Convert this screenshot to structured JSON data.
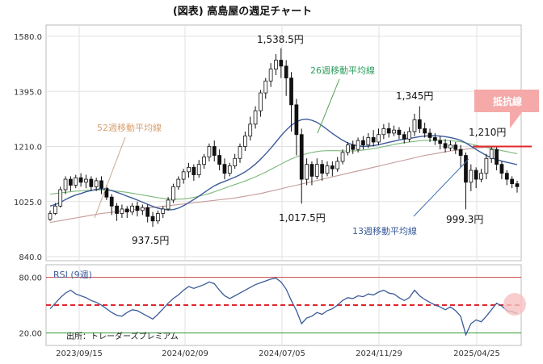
{
  "page_title": "(図表) 高島屋の週足チャート",
  "colors": {
    "up": "#ffffff",
    "down": "#111111",
    "ma13": "#3b5b9a",
    "ma26": "#7ab87a",
    "ma52": "#c49a9a",
    "resistance": "#e0282e",
    "rsi_line": "#3b5b9a",
    "rsi_mid": "#e0282e",
    "rsi_upper": "#d05050",
    "rsi_lower": "#2e9e2e",
    "badge_bg": "#f5a9a9",
    "highlight": "#f8c0c0"
  },
  "labels": {
    "ma52": "52週移動平均線",
    "ma26": "26週移動平均線",
    "ma13": "13週移動平均線",
    "resistance_badge": "抵抗線",
    "rsi_title": "RSI (9週)",
    "source": "出所：トレーダーズプレミアム"
  },
  "annotations": {
    "low1": "937.5円",
    "high1": "1,538.5円",
    "low2": "1,017.5円",
    "high2": "1,345円",
    "resistance_val": "1,210円",
    "low3": "999.3円"
  },
  "chart_data": {
    "type": "candlestick",
    "title": "(図表) 高島屋の週足チャート",
    "price_axis": {
      "ticks": [
        "1580.0",
        "1395.0",
        "1210.0",
        "1025.0",
        "840.0"
      ],
      "range": [
        840,
        1580
      ]
    },
    "rsi_axis": {
      "ticks": [
        "80.00",
        "20.00"
      ],
      "range": [
        10,
        90
      ],
      "upper": 80,
      "lower": 20,
      "middle": 50
    },
    "x_ticks": [
      "2023/09/15",
      "2024/02/09",
      "2024/07/05",
      "2024/11/29",
      "2025/04/25"
    ],
    "resistance_level": 1210,
    "candles": [
      [
        965,
        985,
        960,
        995
      ],
      [
        985,
        1010,
        980,
        1020
      ],
      [
        1010,
        1065,
        1005,
        1075
      ],
      [
        1065,
        1100,
        1050,
        1110
      ],
      [
        1100,
        1080,
        1060,
        1110
      ],
      [
        1080,
        1105,
        1070,
        1115
      ],
      [
        1105,
        1090,
        1075,
        1120
      ],
      [
        1090,
        1100,
        1070,
        1115
      ],
      [
        1100,
        1075,
        1060,
        1110
      ],
      [
        1075,
        1095,
        1060,
        1105
      ],
      [
        1095,
        1070,
        1050,
        1110
      ],
      [
        1070,
        1040,
        1030,
        1080
      ],
      [
        1040,
        1010,
        980,
        1050
      ],
      [
        1010,
        985,
        960,
        1020
      ],
      [
        985,
        1000,
        970,
        1015
      ],
      [
        1000,
        990,
        970,
        1010
      ],
      [
        990,
        1010,
        980,
        1020
      ],
      [
        1010,
        995,
        975,
        1025
      ],
      [
        995,
        1005,
        980,
        1015
      ],
      [
        1005,
        975,
        955,
        1015
      ],
      [
        975,
        960,
        940,
        990
      ],
      [
        960,
        985,
        950,
        995
      ],
      [
        985,
        1000,
        970,
        1010
      ],
      [
        1000,
        1030,
        995,
        1040
      ],
      [
        1030,
        1075,
        1020,
        1085
      ],
      [
        1075,
        1100,
        1065,
        1110
      ],
      [
        1100,
        1125,
        1085,
        1135
      ],
      [
        1125,
        1140,
        1105,
        1155
      ],
      [
        1140,
        1115,
        1095,
        1150
      ],
      [
        1115,
        1150,
        1105,
        1165
      ],
      [
        1150,
        1175,
        1135,
        1185
      ],
      [
        1175,
        1210,
        1160,
        1220
      ],
      [
        1210,
        1180,
        1160,
        1230
      ],
      [
        1180,
        1150,
        1130,
        1200
      ],
      [
        1150,
        1120,
        1100,
        1170
      ],
      [
        1120,
        1145,
        1110,
        1155
      ],
      [
        1145,
        1170,
        1135,
        1185
      ],
      [
        1170,
        1210,
        1155,
        1220
      ],
      [
        1210,
        1245,
        1195,
        1260
      ],
      [
        1245,
        1285,
        1230,
        1310
      ],
      [
        1285,
        1330,
        1270,
        1345
      ],
      [
        1330,
        1390,
        1310,
        1400
      ],
      [
        1390,
        1430,
        1370,
        1440
      ],
      [
        1430,
        1470,
        1410,
        1490
      ],
      [
        1470,
        1500,
        1450,
        1520
      ],
      [
        1500,
        1480,
        1440,
        1540
      ],
      [
        1480,
        1440,
        1380,
        1500
      ],
      [
        1440,
        1350,
        1260,
        1460
      ],
      [
        1350,
        1250,
        1180,
        1370
      ],
      [
        1250,
        1100,
        1018,
        1270
      ],
      [
        1100,
        1150,
        1080,
        1170
      ],
      [
        1150,
        1110,
        1080,
        1160
      ],
      [
        1110,
        1150,
        1100,
        1170
      ],
      [
        1150,
        1120,
        1095,
        1165
      ],
      [
        1120,
        1145,
        1110,
        1160
      ],
      [
        1145,
        1135,
        1110,
        1160
      ],
      [
        1135,
        1160,
        1125,
        1175
      ],
      [
        1160,
        1190,
        1150,
        1200
      ],
      [
        1190,
        1215,
        1180,
        1225
      ],
      [
        1215,
        1200,
        1185,
        1230
      ],
      [
        1200,
        1230,
        1190,
        1240
      ],
      [
        1230,
        1215,
        1200,
        1245
      ],
      [
        1215,
        1240,
        1205,
        1255
      ],
      [
        1240,
        1225,
        1210,
        1265
      ],
      [
        1225,
        1250,
        1215,
        1270
      ],
      [
        1250,
        1270,
        1235,
        1285
      ],
      [
        1270,
        1255,
        1240,
        1290
      ],
      [
        1255,
        1265,
        1245,
        1280
      ],
      [
        1265,
        1250,
        1235,
        1275
      ],
      [
        1250,
        1235,
        1220,
        1260
      ],
      [
        1235,
        1260,
        1225,
        1275
      ],
      [
        1260,
        1300,
        1245,
        1320
      ],
      [
        1300,
        1270,
        1255,
        1345
      ],
      [
        1270,
        1255,
        1240,
        1290
      ],
      [
        1255,
        1240,
        1225,
        1270
      ],
      [
        1240,
        1230,
        1215,
        1255
      ],
      [
        1230,
        1220,
        1200,
        1245
      ],
      [
        1220,
        1205,
        1190,
        1235
      ],
      [
        1205,
        1215,
        1195,
        1230
      ],
      [
        1215,
        1200,
        1185,
        1225
      ],
      [
        1200,
        1180,
        1140,
        1215
      ],
      [
        1180,
        1090,
        999,
        1190
      ],
      [
        1090,
        1130,
        1060,
        1150
      ],
      [
        1130,
        1100,
        1070,
        1140
      ],
      [
        1100,
        1120,
        1090,
        1135
      ],
      [
        1120,
        1170,
        1100,
        1185
      ],
      [
        1170,
        1200,
        1155,
        1210
      ],
      [
        1200,
        1150,
        1130,
        1210
      ],
      [
        1150,
        1120,
        1100,
        1160
      ],
      [
        1120,
        1100,
        1080,
        1130
      ],
      [
        1100,
        1085,
        1070,
        1110
      ],
      [
        1085,
        1075,
        1055,
        1095
      ]
    ],
    "rsi": [
      46,
      52,
      58,
      63,
      66,
      62,
      60,
      58,
      55,
      53,
      50,
      46,
      42,
      39,
      38,
      42,
      45,
      44,
      41,
      38,
      35,
      40,
      46,
      52,
      57,
      61,
      66,
      70,
      68,
      70,
      72,
      75,
      73,
      66,
      60,
      57,
      60,
      63,
      66,
      69,
      72,
      74,
      76,
      78,
      79,
      75,
      67,
      55,
      44,
      30,
      36,
      38,
      42,
      40,
      44,
      46,
      50,
      55,
      58,
      57,
      60,
      59,
      62,
      61,
      64,
      66,
      63,
      62,
      58,
      55,
      58,
      66,
      60,
      56,
      53,
      50,
      48,
      45,
      48,
      44,
      38,
      18,
      30,
      34,
      32,
      38,
      45,
      52,
      49,
      44,
      43,
      41
    ],
    "ma13": [
      1010,
      1015,
      1022,
      1032,
      1040,
      1047,
      1052,
      1058,
      1062,
      1066,
      1068,
      1066,
      1062,
      1056,
      1050,
      1043,
      1037,
      1030,
      1023,
      1016,
      1009,
      1003,
      999,
      997,
      998,
      1003,
      1011,
      1021,
      1032,
      1043,
      1055,
      1067,
      1078,
      1086,
      1093,
      1100,
      1107,
      1115,
      1125,
      1137,
      1151,
      1167,
      1185,
      1204,
      1225,
      1246,
      1265,
      1281,
      1293,
      1300,
      1302,
      1298,
      1291,
      1280,
      1267,
      1254,
      1242,
      1231,
      1222,
      1216,
      1212,
      1210,
      1211,
      1213,
      1216,
      1220,
      1224,
      1228,
      1232,
      1235,
      1237,
      1240,
      1243,
      1245,
      1246,
      1246,
      1245,
      1243,
      1240,
      1236,
      1231,
      1222,
      1211,
      1200,
      1190,
      1180,
      1172,
      1166,
      1161,
      1157,
      1153,
      1149
    ],
    "ma26": [
      1050,
      1052,
      1054,
      1056,
      1058,
      1060,
      1061,
      1062,
      1063,
      1064,
      1064,
      1063,
      1062,
      1060,
      1058,
      1056,
      1053,
      1050,
      1047,
      1044,
      1041,
      1038,
      1036,
      1034,
      1033,
      1033,
      1034,
      1036,
      1039,
      1043,
      1047,
      1052,
      1058,
      1064,
      1070,
      1076,
      1082,
      1088,
      1094,
      1101,
      1108,
      1116,
      1124,
      1133,
      1142,
      1151,
      1160,
      1168,
      1175,
      1181,
      1186,
      1190,
      1193,
      1195,
      1196,
      1196,
      1196,
      1195,
      1195,
      1195,
      1196,
      1198,
      1200,
      1203,
      1206,
      1210,
      1213,
      1217,
      1220,
      1223,
      1225,
      1227,
      1229,
      1230,
      1231,
      1231,
      1231,
      1230,
      1229,
      1228,
      1226,
      1222,
      1218,
      1214,
      1210,
      1207,
      1203,
      1200,
      1196,
      1193,
      1189,
      1186
    ],
    "ma52": [
      955,
      958,
      961,
      964,
      967,
      970,
      973,
      976,
      979,
      982,
      985,
      987,
      989,
      991,
      993,
      995,
      997,
      999,
      1001,
      1003,
      1005,
      1007,
      1009,
      1011,
      1013,
      1015,
      1017,
      1019,
      1021,
      1023,
      1025,
      1027,
      1029,
      1031,
      1033,
      1035,
      1037,
      1040,
      1043,
      1046,
      1049,
      1052,
      1056,
      1060,
      1064,
      1068,
      1072,
      1076,
      1080,
      1084,
      1088,
      1092,
      1096,
      1100,
      1104,
      1108,
      1112,
      1116,
      1120,
      1124,
      1128,
      1132,
      1136,
      1140,
      1144,
      1148,
      1152,
      1156,
      1160,
      1164,
      1168,
      1172,
      1176,
      1180,
      1183,
      1186,
      1189,
      1192,
      1195,
      1197,
      1199,
      1201,
      1203,
      1205,
      1206,
      1207,
      1208,
      1208,
      1209,
      1209,
      1210,
      1210
    ]
  }
}
